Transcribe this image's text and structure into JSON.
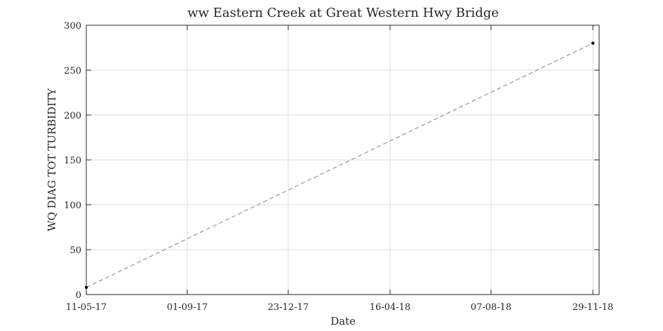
{
  "chart_data": {
    "type": "line",
    "title": "ww Eastern Creek at Great Western Hwy Bridge",
    "xlabel": "Date",
    "ylabel": "WQ DIAG TOT TURBIDITY",
    "xlim": [
      "2017-05-11",
      "2018-12-06"
    ],
    "ylim": [
      0,
      300
    ],
    "x_ticks": [
      {
        "date": "2017-05-11",
        "label": "11-05-17"
      },
      {
        "date": "2017-09-01",
        "label": "01-09-17"
      },
      {
        "date": "2017-12-23",
        "label": "23-12-17"
      },
      {
        "date": "2018-04-16",
        "label": "16-04-18"
      },
      {
        "date": "2018-08-07",
        "label": "07-08-18"
      },
      {
        "date": "2018-11-29",
        "label": "29-11-18"
      }
    ],
    "y_ticks": [
      0,
      50,
      100,
      150,
      200,
      250,
      300
    ],
    "grid": true,
    "series": [
      {
        "color": "#808080",
        "line_style": "dashed",
        "marker_color": "#000000",
        "points": [
          {
            "x": "2017-05-11",
            "y": 8
          },
          {
            "x": "2018-11-29",
            "y": 280
          }
        ]
      }
    ]
  }
}
